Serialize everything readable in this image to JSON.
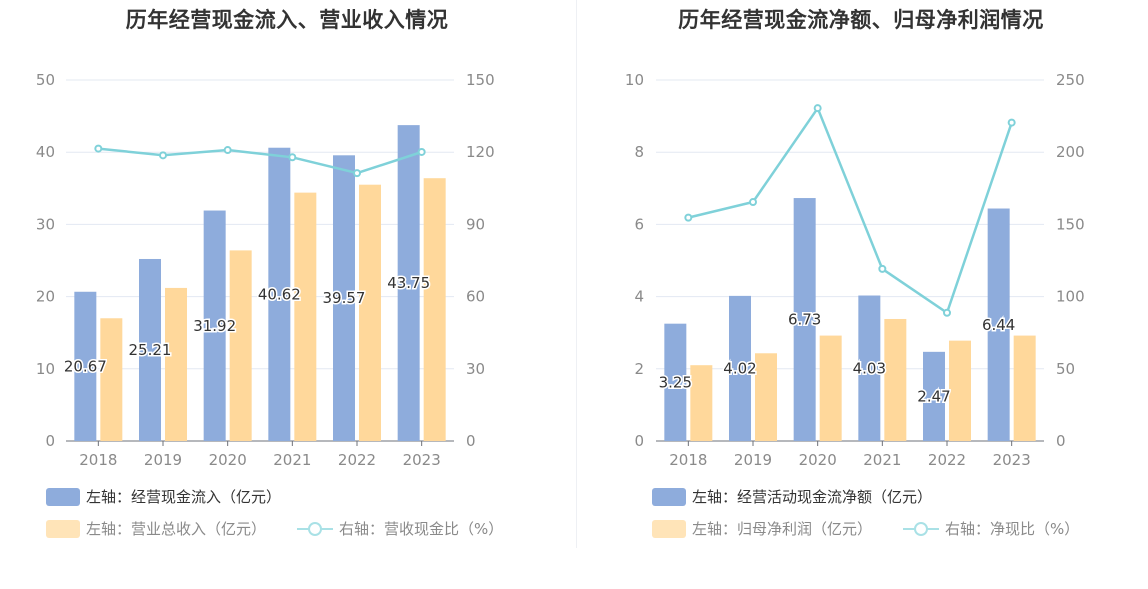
{
  "colors": {
    "inflow": "#8eacdc",
    "revenue": "#ffd89b",
    "ratio": "#7fd1d9",
    "axis": "#8a8a8a",
    "grid": "#e3e8f2"
  },
  "left": {
    "title": "历年经营现金流入、营业收入情况",
    "legend": {
      "s1": "左轴：经营现金流入（亿元）",
      "s2": "左轴：营业总收入（亿元）",
      "s3": "右轴：营收现金比（%）"
    },
    "chart_data": {
      "type": "bar",
      "categories": [
        "2018",
        "2019",
        "2020",
        "2021",
        "2022",
        "2023"
      ],
      "left_axis": {
        "min": 0,
        "max": 50,
        "ticks": [
          0,
          10,
          20,
          30,
          40,
          50
        ]
      },
      "right_axis": {
        "min": 0,
        "max": 150,
        "ticks": [
          0,
          30,
          60,
          90,
          120,
          150
        ]
      },
      "series": [
        {
          "name": "左轴：经营现金流入（亿元）",
          "type": "bar",
          "axis": "left",
          "values": [
            20.67,
            25.21,
            31.92,
            40.62,
            39.57,
            43.75
          ],
          "show_labels": true
        },
        {
          "name": "左轴：营业总收入（亿元）",
          "type": "bar",
          "axis": "left",
          "values": [
            17.0,
            21.2,
            26.4,
            34.4,
            35.5,
            36.4
          ],
          "show_labels": false
        },
        {
          "name": "右轴：营收现金比（%）",
          "type": "line",
          "axis": "right",
          "values": [
            121.5,
            118.7,
            120.9,
            117.9,
            111.3,
            120.1
          ],
          "show_labels": false
        }
      ],
      "grid": true,
      "legend_position": "bottom-left"
    }
  },
  "right": {
    "title": "历年经营现金流净额、归母净利润情况",
    "legend": {
      "s1": "左轴：经营活动现金流净额（亿元）",
      "s2": "左轴：归母净利润（亿元）",
      "s3": "右轴：净现比（%）"
    },
    "chart_data": {
      "type": "bar",
      "categories": [
        "2018",
        "2019",
        "2020",
        "2021",
        "2022",
        "2023"
      ],
      "left_axis": {
        "min": 0,
        "max": 10,
        "ticks": [
          0,
          2,
          4,
          6,
          8,
          10
        ]
      },
      "right_axis": {
        "min": 0,
        "max": 250,
        "ticks": [
          0,
          50,
          100,
          150,
          200,
          250
        ]
      },
      "series": [
        {
          "name": "左轴：经营活动现金流净额（亿元）",
          "type": "bar",
          "axis": "left",
          "values": [
            3.25,
            4.02,
            6.73,
            4.03,
            2.47,
            6.44
          ],
          "show_labels": true
        },
        {
          "name": "左轴：归母净利润（亿元）",
          "type": "bar",
          "axis": "left",
          "values": [
            2.1,
            2.43,
            2.92,
            3.38,
            2.78,
            2.92
          ],
          "show_labels": false
        },
        {
          "name": "右轴：净现比（%）",
          "type": "line",
          "axis": "right",
          "values": [
            154.7,
            165.5,
            230.5,
            119.2,
            88.8,
            220.5
          ],
          "show_labels": false
        }
      ],
      "grid": true,
      "legend_position": "bottom-left"
    }
  }
}
